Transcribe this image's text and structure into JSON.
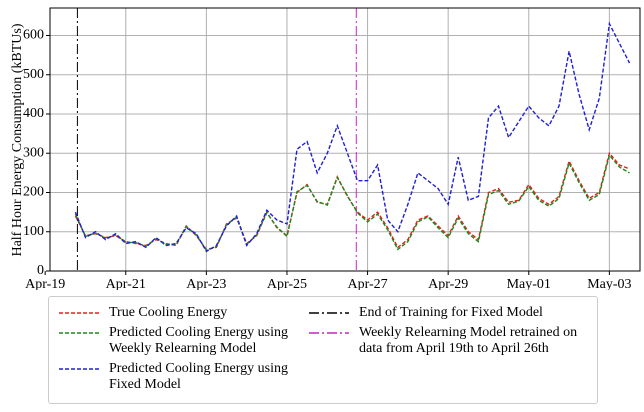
{
  "chart_data": {
    "type": "line",
    "ylabel": "Half Hour Energy Consumption (kBTUs)",
    "x": [
      0.75,
      1,
      1.25,
      1.5,
      1.75,
      2,
      2.25,
      2.5,
      2.75,
      3,
      3.25,
      3.5,
      3.75,
      4,
      4.25,
      4.5,
      4.75,
      5,
      5.25,
      5.5,
      5.75,
      6,
      6.25,
      6.5,
      6.75,
      7,
      7.25,
      7.5,
      7.75,
      8,
      8.25,
      8.5,
      8.75,
      9,
      9.25,
      9.5,
      9.75,
      10,
      10.25,
      10.5,
      10.75,
      11,
      11.25,
      11.5,
      11.75,
      12,
      12.25,
      12.5,
      12.75,
      13,
      13.25,
      13.5,
      13.75,
      14,
      14.25,
      14.5
    ],
    "series": [
      {
        "name": "True Cooling Energy",
        "color": "#e8211c",
        "values": [
          140,
          90,
          95,
          85,
          90,
          75,
          70,
          65,
          80,
          70,
          65,
          115,
          90,
          55,
          60,
          120,
          135,
          70,
          90,
          150,
          110,
          90,
          200,
          220,
          175,
          170,
          240,
          190,
          150,
          130,
          150,
          110,
          60,
          80,
          130,
          140,
          115,
          90,
          140,
          100,
          80,
          200,
          210,
          175,
          180,
          220,
          185,
          170,
          190,
          280,
          230,
          185,
          200,
          300,
          270,
          260
        ]
      },
      {
        "name": "Predicted Cooling Energy using Weekly Relearning Model",
        "color": "#1a8a1a",
        "values": [
          145,
          88,
          97,
          83,
          92,
          73,
          72,
          63,
          82,
          68,
          67,
          113,
          92,
          53,
          62,
          118,
          137,
          68,
          92,
          148,
          112,
          88,
          202,
          218,
          177,
          168,
          238,
          192,
          148,
          125,
          145,
          105,
          55,
          75,
          125,
          138,
          110,
          85,
          135,
          95,
          75,
          195,
          205,
          170,
          178,
          215,
          180,
          165,
          185,
          275,
          225,
          180,
          195,
          295,
          265,
          250
        ]
      },
      {
        "name": "Predicted Cooling Energy using Fixed Model",
        "color": "#1f1fd6",
        "values": [
          150,
          85,
          100,
          80,
          95,
          70,
          75,
          60,
          85,
          65,
          70,
          110,
          95,
          50,
          65,
          115,
          140,
          65,
          95,
          155,
          130,
          120,
          310,
          330,
          250,
          300,
          370,
          300,
          230,
          230,
          270,
          130,
          100,
          170,
          250,
          230,
          210,
          170,
          290,
          180,
          190,
          390,
          420,
          340,
          380,
          420,
          390,
          370,
          420,
          560,
          450,
          360,
          440,
          630,
          580,
          530
        ]
      }
    ],
    "vlines": [
      {
        "name": "End of Training for Fixed Model",
        "color": "#000000",
        "x": 0.8
      },
      {
        "name": "Weekly Relearning Model retrained on data from April 19th to April 26th",
        "color": "#cc22cc",
        "x": 7.72
      }
    ],
    "xlim": [
      0.12,
      14.76
    ],
    "xticks": [
      {
        "value": 0,
        "label": "Apr-19"
      },
      {
        "value": 2,
        "label": "Apr-21"
      },
      {
        "value": 4,
        "label": "Apr-23"
      },
      {
        "value": 6,
        "label": "Apr-25"
      },
      {
        "value": 8,
        "label": "Apr-27"
      },
      {
        "value": 10,
        "label": "Apr-29"
      },
      {
        "value": 12,
        "label": "May-01"
      },
      {
        "value": 14,
        "label": "May-03"
      }
    ],
    "ylim": [
      0,
      670
    ],
    "yticks": [
      0,
      100,
      200,
      300,
      400,
      500,
      600
    ],
    "grid": true
  }
}
